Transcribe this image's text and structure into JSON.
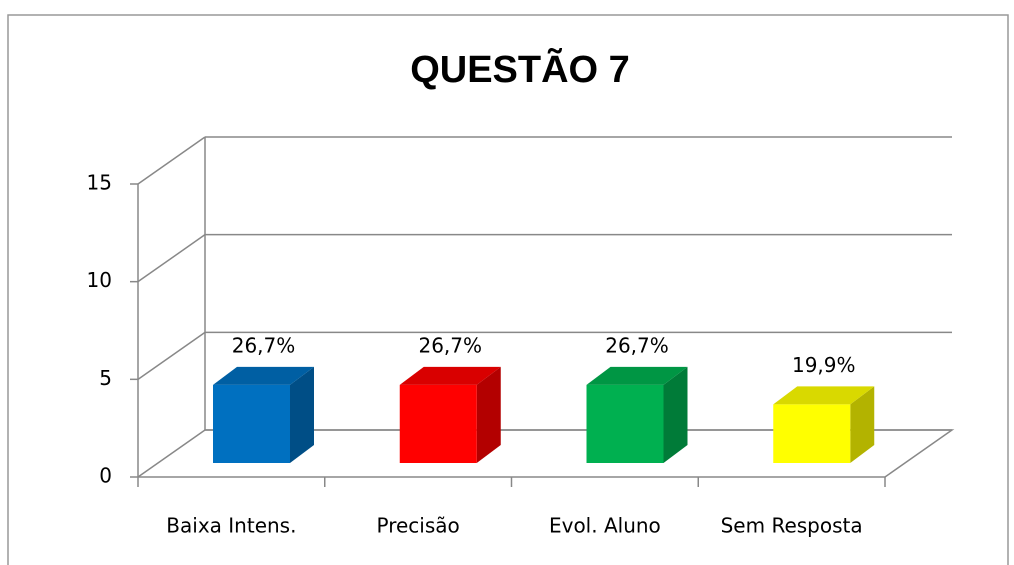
{
  "chart_data": {
    "type": "bar3d",
    "title": "QUESTÃO 7",
    "categories": [
      "Baixa Intens.",
      "Precisão",
      "Evol. Aluno",
      "Sem Resposta"
    ],
    "values": [
      4,
      4,
      4,
      3
    ],
    "annotations": [
      "26,7%",
      "26,7%",
      "26,7%",
      "19,9%"
    ],
    "colors": [
      "#0070c0",
      "#ff0000",
      "#00b050",
      "#ffff00"
    ],
    "ylim": [
      0,
      15
    ],
    "yticks": [
      0,
      5,
      10,
      15
    ],
    "grid": true
  }
}
